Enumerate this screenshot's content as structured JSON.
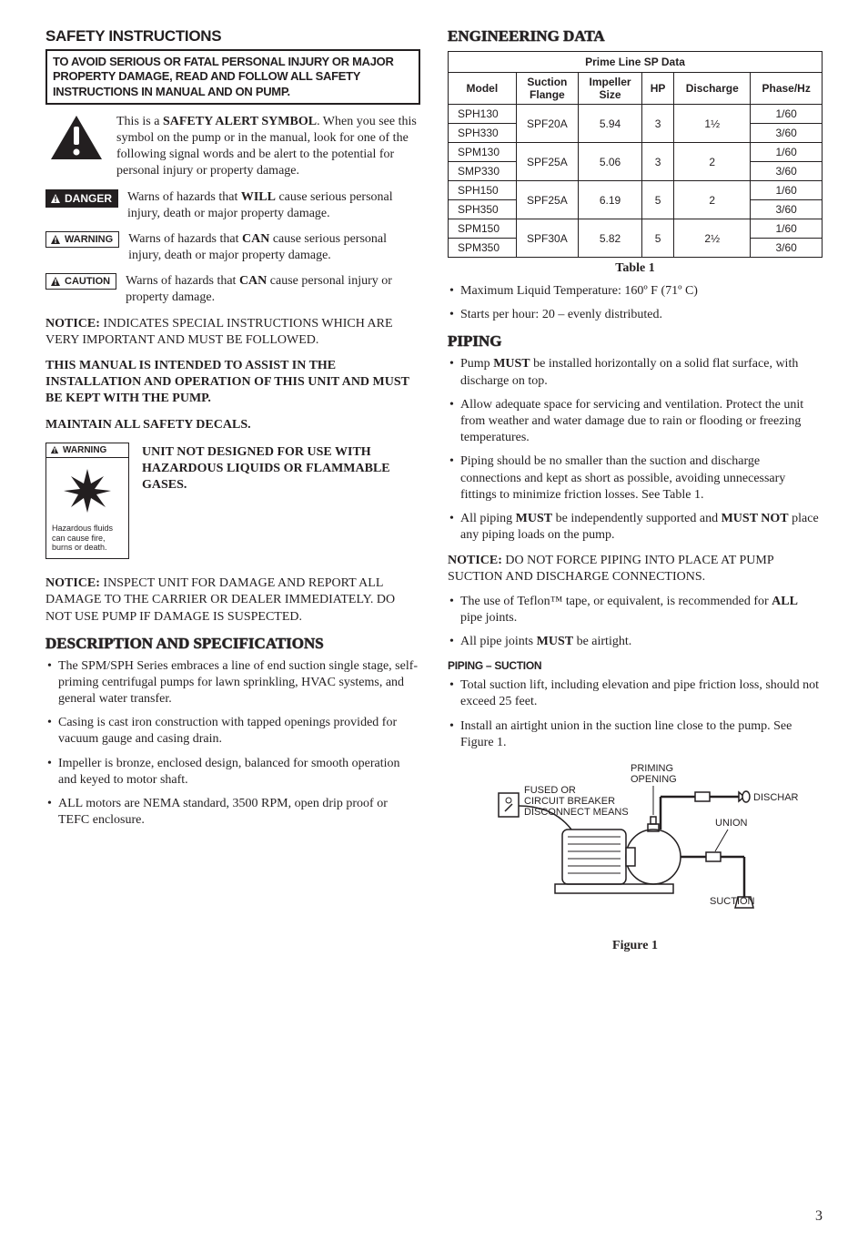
{
  "page_number": "3",
  "left": {
    "safety_title": "SAFETY INSTRUCTIONS",
    "banner": "TO AVOID SERIOUS OR FATAL PERSONAL INJURY OR MAJOR PROPERTY DAMAGE, READ AND FOLLOW ALL SAFETY INSTRUCTIONS IN MANUAL AND ON PUMP.",
    "alert_intro_prefix": "This is a ",
    "alert_intro_bold": "SAFETY ALERT SYMBOL",
    "alert_intro_suffix": ". When you see this symbol on the pump or in the manual, look for one of the following signal words and be alert to the potential for personal injury or property damage.",
    "danger_label": "DANGER",
    "danger_text_prefix": "Warns of hazards that ",
    "danger_text_bold": "WILL",
    "danger_text_suffix": " cause serious personal injury, death or major property damage.",
    "warning_label": "WARNING",
    "warning_text_prefix": "Warns of hazards that ",
    "warning_text_bold": "CAN",
    "warning_text_suffix": " cause serious personal injury, death or major property damage.",
    "caution_label": "CAUTION",
    "caution_text_prefix": "Warns of hazards that ",
    "caution_text_bold": "CAN",
    "caution_text_suffix": " cause personal injury or property damage.",
    "notice_label": "NOTICE:",
    "notice1": "INDICATES SPECIAL INSTRUCTIONS WHICH ARE VERY IMPORTANT AND MUST BE FOLLOWED.",
    "keep_manual": "THIS MANUAL IS INTENDED TO ASSIST IN THE INSTALLATION AND OPERATION OF THIS UNIT AND MUST BE KEPT WITH THE PUMP.",
    "maintain_decals": "MAINTAIN ALL SAFETY DECALS.",
    "hazard_warning_label": "WARNING",
    "hazard_text": "UNIT NOT DESIGNED FOR USE WITH HAZARDOUS LIQUIDS OR FLAMMABLE GASES.",
    "hazard_caption": "Hazardous fluids can cause fire, burns or death.",
    "notice2": "INSPECT UNIT FOR DAMAGE AND REPORT ALL DAMAGE TO THE CARRIER OR DEALER IMMEDIATELY. DO NOT USE PUMP IF DAMAGE IS SUSPECTED.",
    "desc_title": "DESCRIPTION AND SPECIFICATIONS",
    "desc_bullets": [
      "The SPM/SPH Series embraces a line of end suction single stage, self-priming centrifugal pumps for lawn sprinkling, HVAC systems, and general water transfer.",
      "Casing is cast iron construction with tapped openings provided for vacuum gauge and casing drain.",
      "Impeller is bronze, enclosed design, balanced for smooth operation and keyed to motor shaft.",
      "ALL motors are NEMA standard, 3500 RPM, open drip proof or TEFC enclosure."
    ]
  },
  "right": {
    "eng_title": "ENGINEERING DATA",
    "table": {
      "title": "Prime Line SP Data",
      "columns": [
        "Model",
        "Suction Flange",
        "Impeller Size",
        "HP",
        "Discharge",
        "Phase/Hz"
      ],
      "rows": [
        {
          "models": [
            "SPH130",
            "SPH330"
          ],
          "flange": "SPF20A",
          "impeller": "5.94",
          "hp": "3",
          "discharge": "1½",
          "phase": [
            "1/60",
            "3/60"
          ]
        },
        {
          "models": [
            "SPM130",
            "SMP330"
          ],
          "flange": "SPF25A",
          "impeller": "5.06",
          "hp": "3",
          "discharge": "2",
          "phase": [
            "1/60",
            "3/60"
          ]
        },
        {
          "models": [
            "SPH150",
            "SPH350"
          ],
          "flange": "SPF25A",
          "impeller": "6.19",
          "hp": "5",
          "discharge": "2",
          "phase": [
            "1/60",
            "3/60"
          ]
        },
        {
          "models": [
            "SPM150",
            "SPM350"
          ],
          "flange": "SPF30A",
          "impeller": "5.82",
          "hp": "5",
          "discharge": "2½",
          "phase": [
            "1/60",
            "3/60"
          ]
        }
      ],
      "caption": "Table 1"
    },
    "post_table_bullets": [
      "Maximum Liquid Temperature: 160º F (71º C)",
      "Starts per hour: 20 – evenly distributed."
    ],
    "piping_title": "PIPING",
    "piping_bullets_html": [
      "Pump <b>MUST</b> be installed horizontally on a solid flat surface, with discharge on top.",
      "Allow adequate space for servicing and ventilation. Protect the unit from weather and water damage due to rain or flooding or freezing temperatures.",
      "Piping should be no smaller than the suction and discharge connections and kept as short as possible, avoiding unnecessary fittings to minimize friction losses. See Table 1.",
      "All piping <b>MUST</b> be independently supported and <b>MUST NOT</b> place any piping loads on the pump."
    ],
    "piping_notice": "DO NOT FORCE PIPING INTO PLACE AT PUMP SUCTION AND DISCHARGE CONNECTIONS.",
    "piping_bullets2_html": [
      "The use of Teflon™ tape, or equivalent, is recommended for <b>ALL</b> pipe joints.",
      "All pipe joints <b>MUST</b> be airtight."
    ],
    "suction_heading": "PIPING – SUCTION",
    "suction_bullets": [
      "Total suction lift, including elevation and pipe friction loss, should not exceed 25 feet.",
      "Install an airtight union in the suction line close to the pump. See Figure 1."
    ],
    "figure": {
      "labels": {
        "priming": "PRIMING OPENING",
        "breaker": "FUSED OR CIRCUIT BREAKER DISCONNECT MEANS",
        "discharge": "DISCHARGE",
        "union": "UNION",
        "suction": "SUCTION"
      },
      "caption": "Figure 1"
    }
  }
}
